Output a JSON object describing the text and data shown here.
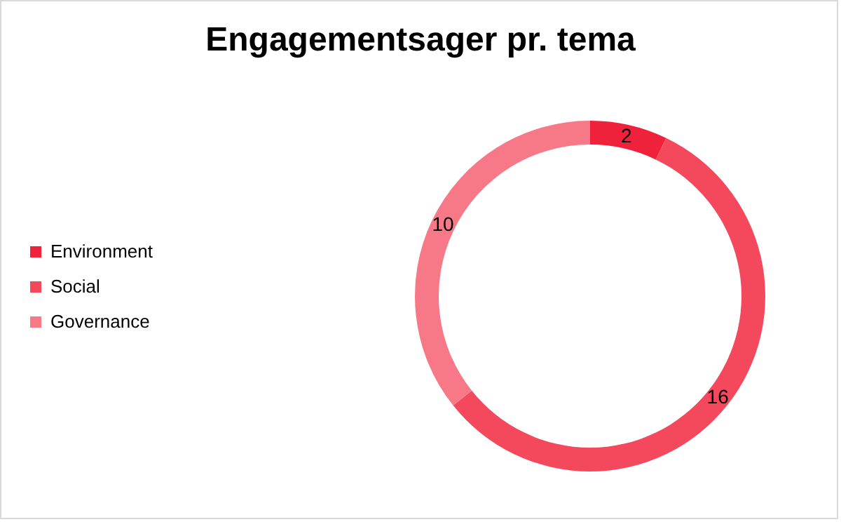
{
  "chart_data": {
    "type": "donut",
    "title": "Engagementsager pr. tema",
    "categories": [
      "Environment",
      "Social",
      "Governance"
    ],
    "values": [
      2,
      16,
      10
    ],
    "colors": [
      "#f0213b",
      "#f4485c",
      "#f77987"
    ],
    "data_labels": true,
    "legend": "left"
  }
}
